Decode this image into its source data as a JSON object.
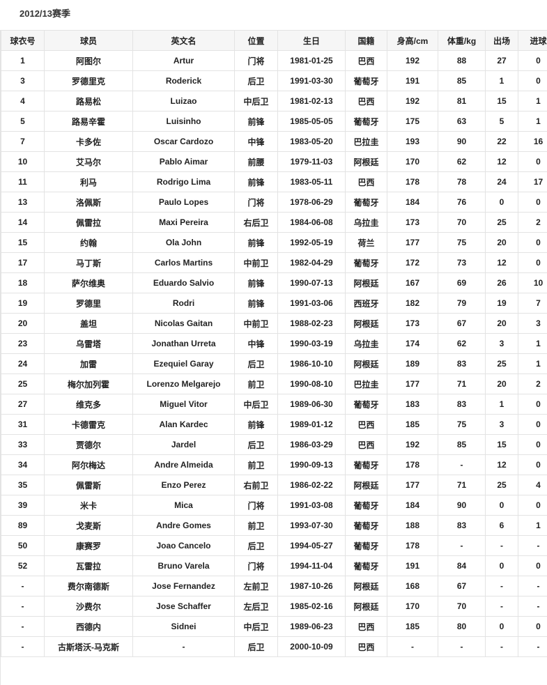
{
  "title": "2012/13赛季",
  "columns": [
    "球衣号",
    "球员",
    "英文名",
    "位置",
    "生日",
    "国籍",
    "身高/cm",
    "体重/kg",
    "出场",
    "进球"
  ],
  "rows": [
    [
      "1",
      "阿图尔",
      "Artur",
      "门将",
      "1981-01-25",
      "巴西",
      "192",
      "88",
      "27",
      "0"
    ],
    [
      "3",
      "罗德里克",
      "Roderick",
      "后卫",
      "1991-03-30",
      "葡萄牙",
      "191",
      "85",
      "1",
      "0"
    ],
    [
      "4",
      "路易松",
      "Luizao",
      "中后卫",
      "1981-02-13",
      "巴西",
      "192",
      "81",
      "15",
      "1"
    ],
    [
      "5",
      "路易辛霍",
      "Luisinho",
      "前锋",
      "1985-05-05",
      "葡萄牙",
      "175",
      "63",
      "5",
      "1"
    ],
    [
      "7",
      "卡多佐",
      "Oscar Cardozo",
      "中锋",
      "1983-05-20",
      "巴拉圭",
      "193",
      "90",
      "22",
      "16"
    ],
    [
      "10",
      "艾马尔",
      "Pablo Aimar",
      "前腰",
      "1979-11-03",
      "阿根廷",
      "170",
      "62",
      "12",
      "0"
    ],
    [
      "11",
      "利马",
      "Rodrigo Lima",
      "前锋",
      "1983-05-11",
      "巴西",
      "178",
      "78",
      "24",
      "17"
    ],
    [
      "13",
      "洛佩斯",
      "Paulo Lopes",
      "门将",
      "1978-06-29",
      "葡萄牙",
      "184",
      "76",
      "0",
      "0"
    ],
    [
      "14",
      "佩雷拉",
      "Maxi Pereira",
      "右后卫",
      "1984-06-08",
      "乌拉圭",
      "173",
      "70",
      "25",
      "2"
    ],
    [
      "15",
      "约翰",
      "Ola John",
      "前锋",
      "1992-05-19",
      "荷兰",
      "177",
      "75",
      "20",
      "0"
    ],
    [
      "17",
      "马丁斯",
      "Carlos Martins",
      "中前卫",
      "1982-04-29",
      "葡萄牙",
      "172",
      "73",
      "12",
      "0"
    ],
    [
      "18",
      "萨尔维奥",
      "Eduardo Salvio",
      "前锋",
      "1990-07-13",
      "阿根廷",
      "167",
      "69",
      "26",
      "10"
    ],
    [
      "19",
      "罗德里",
      "Rodri",
      "前锋",
      "1991-03-06",
      "西班牙",
      "182",
      "79",
      "19",
      "7"
    ],
    [
      "20",
      "盖坦",
      "Nicolas Gaitan",
      "中前卫",
      "1988-02-23",
      "阿根廷",
      "173",
      "67",
      "20",
      "3"
    ],
    [
      "23",
      "乌雷塔",
      "Jonathan Urreta",
      "中锋",
      "1990-03-19",
      "乌拉圭",
      "174",
      "62",
      "3",
      "1"
    ],
    [
      "24",
      "加雷",
      "Ezequiel Garay",
      "后卫",
      "1986-10-10",
      "阿根廷",
      "189",
      "83",
      "25",
      "1"
    ],
    [
      "25",
      "梅尔加列霍",
      "Lorenzo Melgarejo",
      "前卫",
      "1990-08-10",
      "巴拉圭",
      "177",
      "71",
      "20",
      "2"
    ],
    [
      "27",
      "维克多",
      "Miguel Vitor",
      "中后卫",
      "1989-06-30",
      "葡萄牙",
      "183",
      "83",
      "1",
      "0"
    ],
    [
      "31",
      "卡德雷克",
      "Alan Kardec",
      "前锋",
      "1989-01-12",
      "巴西",
      "185",
      "75",
      "3",
      "0"
    ],
    [
      "33",
      "贾德尔",
      "Jardel",
      "后卫",
      "1986-03-29",
      "巴西",
      "192",
      "85",
      "15",
      "0"
    ],
    [
      "34",
      "阿尔梅达",
      "Andre Almeida",
      "前卫",
      "1990-09-13",
      "葡萄牙",
      "178",
      "-",
      "12",
      "0"
    ],
    [
      "35",
      "佩雷斯",
      "Enzo Perez",
      "右前卫",
      "1986-02-22",
      "阿根廷",
      "177",
      "71",
      "25",
      "4"
    ],
    [
      "39",
      "米卡",
      "Mica",
      "门将",
      "1991-03-08",
      "葡萄牙",
      "184",
      "90",
      "0",
      "0"
    ],
    [
      "89",
      "戈麦斯",
      "Andre Gomes",
      "前卫",
      "1993-07-30",
      "葡萄牙",
      "188",
      "83",
      "6",
      "1"
    ],
    [
      "50",
      "康赛罗",
      "Joao Cancelo",
      "后卫",
      "1994-05-27",
      "葡萄牙",
      "178",
      "-",
      "-",
      "-"
    ],
    [
      "52",
      "瓦雷拉",
      "Bruno Varela",
      "门将",
      "1994-11-04",
      "葡萄牙",
      "191",
      "84",
      "0",
      "0"
    ],
    [
      "-",
      "费尔南德斯",
      "Jose Fernandez",
      "左前卫",
      "1987-10-26",
      "阿根廷",
      "168",
      "67",
      "-",
      "-"
    ],
    [
      "-",
      "沙费尔",
      "Jose Schaffer",
      "左后卫",
      "1985-02-16",
      "阿根廷",
      "170",
      "70",
      "-",
      "-"
    ],
    [
      "-",
      "西德内",
      "Sidnei",
      "中后卫",
      "1989-06-23",
      "巴西",
      "185",
      "80",
      "0",
      "0"
    ],
    [
      "-",
      "古斯塔沃-马克斯",
      "-",
      "后卫",
      "2000-10-09",
      "巴西",
      "-",
      "-",
      "-",
      "-"
    ]
  ]
}
